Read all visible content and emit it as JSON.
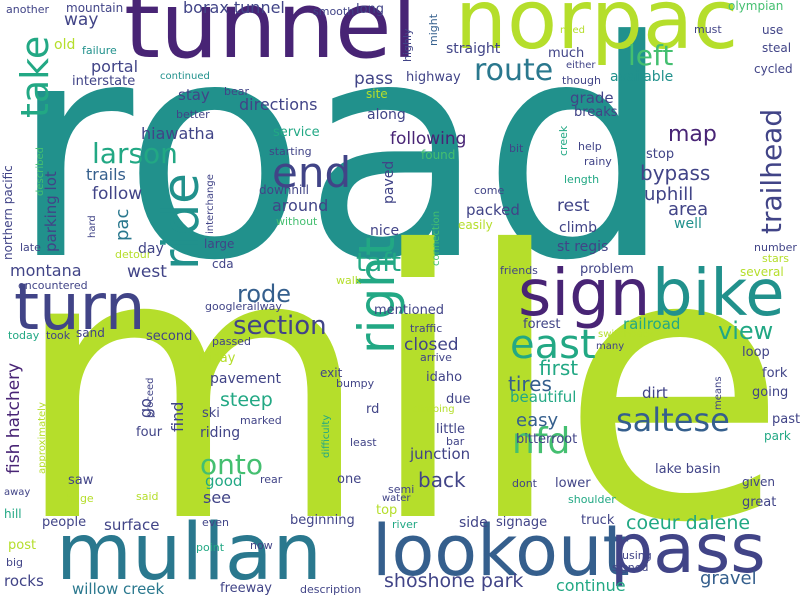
{
  "colors": {
    "purple": "#482475",
    "indigo": "#414487",
    "blue": "#355f8d",
    "steel": "#2a788e",
    "teal": "#21918c",
    "green": "#22a884",
    "lime": "#44bf70",
    "yellowgreen": "#b5de2b"
  },
  "words": {
    "road": "road",
    "mile": "mile",
    "tunnel": "tunnel",
    "norpac": "norpac",
    "mullan": "mullan",
    "lookout": "lookout",
    "pass": "pass",
    "sign": "sign",
    "bike": "bike",
    "turn": "turn",
    "ride": "ride",
    "right": "right",
    "take": "take",
    "trailhead": "trailhead",
    "route": "route",
    "left": "left",
    "end": "end",
    "larson": "larson",
    "east": "east",
    "saltese": "saltese",
    "section": "section",
    "nfd": "nfd",
    "view": "view",
    "onto": "onto",
    "taft": "taft",
    "rode": "rode",
    "bypass": "bypass",
    "map": "map",
    "following": "following",
    "uphill": "uphill",
    "area": "area",
    "shoshone_park": "shoshone park",
    "coeur_dalene": "coeur dalene",
    "borax_tunnel": "borax tunnel",
    "way": "way",
    "portal": "portal",
    "directions": "directions",
    "hiawatha": "hiawatha",
    "west": "west",
    "montana": "montana",
    "parking_lot": "parking lot",
    "fish_hatchery": "fish hatchery",
    "northern_pacific": "northern pacific",
    "pac": "pac",
    "trails": "trails",
    "follow": "follow",
    "around": "around",
    "paved": "paved",
    "steep": "steep",
    "closed": "closed",
    "first": "first",
    "tires": "tires",
    "easy": "easy",
    "back": "back",
    "railroad": "railroad",
    "rest": "rest",
    "gravel": "gravel",
    "continue": "continue",
    "willow_creek": "willow creek",
    "rocks": "rocks",
    "surface": "surface",
    "mountain": "mountain",
    "interstate": "interstate",
    "straight": "straight",
    "highway": "highway",
    "grade": "grade",
    "stay": "stay",
    "packed": "packed",
    "climb": "climb",
    "st_regis": "st regis",
    "junction": "junction",
    "pavement": "pavement",
    "riding": "riding",
    "good": "good",
    "see": "see",
    "go": "go",
    "find": "find",
    "beautiful": "beautiful",
    "dirt": "dirt",
    "lake_basin": "lake basin",
    "past": "past",
    "fork": "fork",
    "loop": "loop",
    "going": "going",
    "great": "great",
    "lower": "lower",
    "bitterroot": "bitterroot",
    "signage": "signage",
    "truck": "truck",
    "side": "side",
    "idaho": "idaho",
    "mentioned": "mentioned",
    "rd": "rd",
    "little": "little",
    "due": "due",
    "nice": "nice",
    "day": "day",
    "cda": "cda",
    "service": "service",
    "along": "along",
    "forest": "forest",
    "problem": "problem",
    "stop": "stop",
    "olympian": "olympian",
    "long": "long",
    "smooth": "smooth",
    "might": "might",
    "another": "another",
    "old": "old",
    "failure": "failure",
    "continued": "continued",
    "better": "better",
    "bear": "bear",
    "site": "site",
    "much": "much",
    "either": "either",
    "though": "though",
    "available": "available",
    "breaks": "breaks",
    "must": "must",
    "use": "use",
    "steal": "steal",
    "cycled": "cycled",
    "need": "need",
    "highly": "highly",
    "bit": "bit",
    "help": "help",
    "rainy": "rainy",
    "length": "length",
    "creek": "creek",
    "found": "found",
    "come": "come",
    "easily": "easily",
    "well": "well",
    "connection": "connection",
    "starting": "starting",
    "downhill": "downhill",
    "interchange": "interchange",
    "without": "without",
    "hard": "hard",
    "late": "late",
    "described": "described",
    "large": "large",
    "detour": "detour",
    "encountered": "encountered",
    "googlerailway": "googlerailway",
    "walk": "walk",
    "friends": "friends",
    "number": "number",
    "stars": "stars",
    "several": "several",
    "shoulder": "shoulder",
    "given": "given",
    "park": "park",
    "means": "means",
    "switchback": "switchback",
    "many": "many",
    "traffic": "traffic",
    "arrive": "arrive",
    "exit": "exit",
    "bumpy": "bumpy",
    "climbing": "climbing",
    "bar": "bar",
    "dont": "dont",
    "semi": "semi",
    "water": "water",
    "river": "river",
    "top": "top",
    "least": "least",
    "difficulty": "difficulty",
    "marked": "marked",
    "rear": "rear",
    "beginning": "beginning",
    "even": "even",
    "point": "point",
    "now": "now",
    "freeway": "freeway",
    "description": "description",
    "using": "using",
    "signed": "signed",
    "people": "people",
    "huge": "huge",
    "said": "said",
    "post": "post",
    "big": "big",
    "hill": "hill",
    "away": "away",
    "approximately": "approximately",
    "saw": "saw",
    "today": "today",
    "took": "took",
    "sand": "sand",
    "second": "second",
    "passed": "passed",
    "friday": "friday",
    "ski": "ski",
    "four": "four",
    "proceed": "proceed",
    "one": "one"
  }
}
